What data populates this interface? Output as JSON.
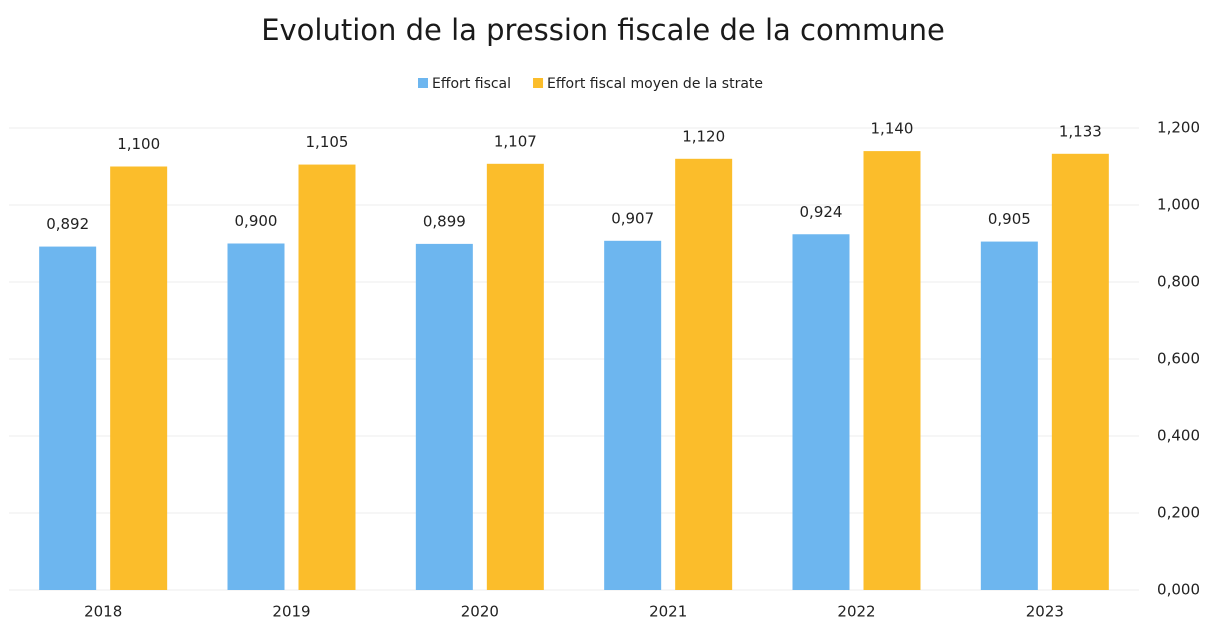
{
  "chart_data": {
    "type": "bar",
    "title": "Evolution de la pression fiscale de la commune",
    "categories": [
      "2018",
      "2019",
      "2020",
      "2021",
      "2022",
      "2023"
    ],
    "series": [
      {
        "name": "Effort fiscal",
        "color": "#6db6ef",
        "values": [
          0.892,
          0.9,
          0.899,
          0.907,
          0.924,
          0.905
        ],
        "value_labels": [
          "0,892",
          "0,900",
          "0,899",
          "0,907",
          "0,924",
          "0,905"
        ]
      },
      {
        "name": "Effort fiscal moyen de la strate",
        "color": "#fbbd2b",
        "values": [
          1.1,
          1.105,
          1.107,
          1.12,
          1.14,
          1.133
        ],
        "value_labels": [
          "1,100",
          "1,105",
          "1,107",
          "1,120",
          "1,140",
          "1,133"
        ]
      }
    ],
    "ylim": [
      0,
      1.2
    ],
    "yticks": [
      {
        "value": 0,
        "label": "0,000"
      },
      {
        "value": 0.2,
        "label": "0,200"
      },
      {
        "value": 0.4,
        "label": "0,400"
      },
      {
        "value": 0.6,
        "label": "0,600"
      },
      {
        "value": 0.8,
        "label": "0,800"
      },
      {
        "value": 1.0,
        "label": "1,000"
      },
      {
        "value": 1.2,
        "label": "1,200"
      }
    ],
    "y_axis_side": "right",
    "grid": true,
    "legend": "top"
  }
}
